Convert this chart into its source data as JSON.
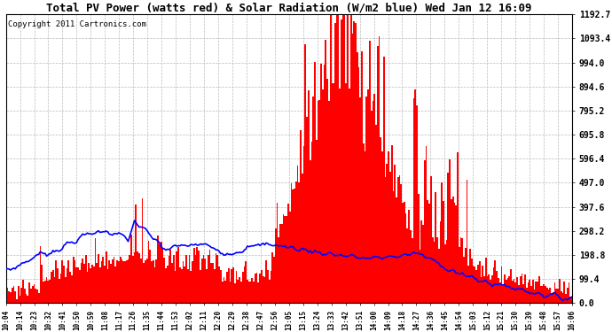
{
  "title": "Total PV Power (watts red) & Solar Radiation (W/m2 blue) Wed Jan 12 16:09",
  "copyright": "Copyright 2011 Cartronics.com",
  "background_color": "#ffffff",
  "plot_bg_color": "#ffffff",
  "grid_color": "#bbbbbb",
  "y_ticks": [
    0.0,
    99.4,
    198.8,
    298.2,
    397.6,
    497.0,
    596.4,
    695.8,
    795.2,
    894.6,
    994.0,
    1093.4,
    1192.7
  ],
  "y_max": 1192.7,
  "x_labels": [
    "10:04",
    "10:14",
    "10:23",
    "10:32",
    "10:41",
    "10:50",
    "10:59",
    "11:08",
    "11:17",
    "11:26",
    "11:35",
    "11:44",
    "11:53",
    "12:02",
    "12:11",
    "12:20",
    "12:29",
    "12:38",
    "12:47",
    "12:56",
    "13:05",
    "13:15",
    "13:24",
    "13:33",
    "13:42",
    "13:51",
    "14:00",
    "14:09",
    "14:18",
    "14:27",
    "14:36",
    "14:45",
    "14:54",
    "15:03",
    "15:12",
    "15:21",
    "15:30",
    "15:39",
    "15:48",
    "15:57",
    "16:06"
  ],
  "bar_color": "#ff0000",
  "line_color": "#0000ff",
  "title_fontsize": 9,
  "copyright_fontsize": 6.5,
  "n_points": 362
}
